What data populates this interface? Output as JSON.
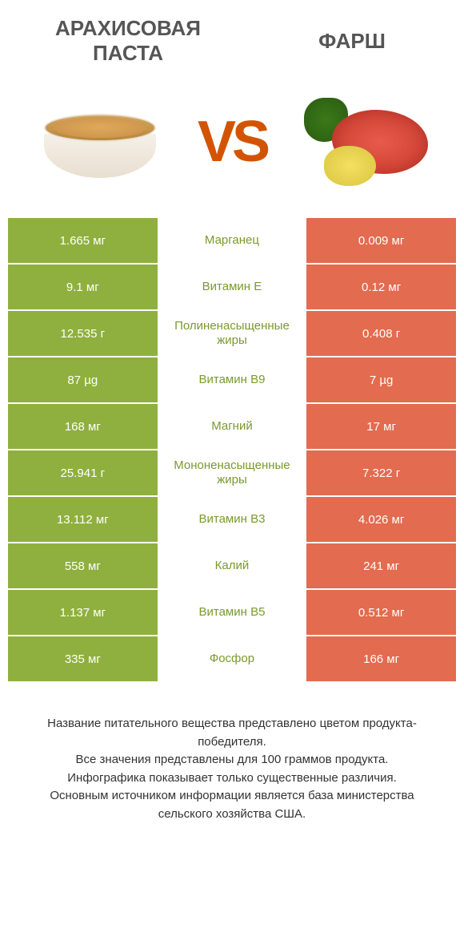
{
  "header": {
    "left_title": "АРАХИСОВАЯ ПАСТА",
    "right_title": "ФАРШ",
    "vs": "VS"
  },
  "colors": {
    "left": "#8fb03e",
    "right": "#e36b4f",
    "nutrient_text": "#7a9a2e"
  },
  "rows": [
    {
      "left": "1.665 мг",
      "mid": "Марганец",
      "right": "0.009 мг",
      "winner": "left"
    },
    {
      "left": "9.1 мг",
      "mid": "Витамин E",
      "right": "0.12 мг",
      "winner": "left"
    },
    {
      "left": "12.535 г",
      "mid": "Полиненасыщенные жиры",
      "right": "0.408 г",
      "winner": "left"
    },
    {
      "left": "87 µg",
      "mid": "Витамин B9",
      "right": "7 µg",
      "winner": "left"
    },
    {
      "left": "168 мг",
      "mid": "Магний",
      "right": "17 мг",
      "winner": "left"
    },
    {
      "left": "25.941 г",
      "mid": "Мононенасыщенные жиры",
      "right": "7.322 г",
      "winner": "left"
    },
    {
      "left": "13.112 мг",
      "mid": "Витамин B3",
      "right": "4.026 мг",
      "winner": "left"
    },
    {
      "left": "558 мг",
      "mid": "Калий",
      "right": "241 мг",
      "winner": "left"
    },
    {
      "left": "1.137 мг",
      "mid": "Витамин B5",
      "right": "0.512 мг",
      "winner": "left"
    },
    {
      "left": "335 мг",
      "mid": "Фосфор",
      "right": "166 мг",
      "winner": "left"
    }
  ],
  "footer": {
    "line1": "Название питательного вещества представлено цветом продукта-победителя.",
    "line2": "Все значения представлены для 100 граммов продукта.",
    "line3": "Инфографика показывает только существенные различия.",
    "line4": "Основным источником информации является база министерства сельского хозяйства США."
  }
}
